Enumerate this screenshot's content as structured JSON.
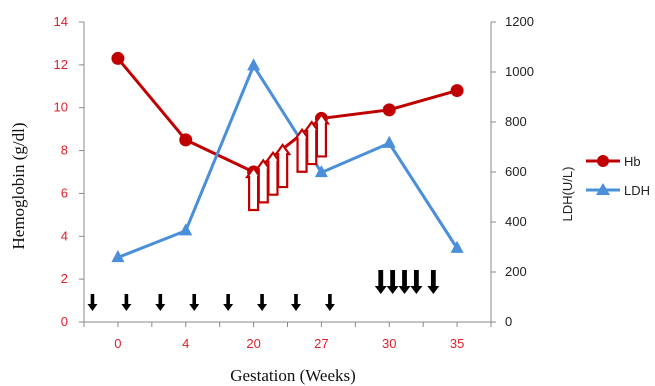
{
  "chart_data": {
    "type": "line",
    "categories": [
      "0",
      "4",
      "20",
      "27",
      "30",
      "35"
    ],
    "xlabel": "Gestation (Weeks)",
    "ylabel": "Hemoglobin (g/dl)",
    "y2label": "LDH(U/L)",
    "ylim": [
      0,
      14
    ],
    "y2lim": [
      0,
      1200
    ],
    "yticks": [
      "0",
      "2",
      "4",
      "6",
      "8",
      "10",
      "12",
      "14"
    ],
    "y2ticks": [
      "0",
      "200",
      "400",
      "600",
      "800",
      "1000",
      "1200"
    ],
    "grid": false,
    "legend_position": "right",
    "series": [
      {
        "name": "Hb",
        "axis": "left",
        "color": "#c00000",
        "marker": "circle",
        "values": [
          12.3,
          8.5,
          7.0,
          9.5,
          9.9,
          10.8
        ]
      },
      {
        "name": "LDH",
        "axis": "right",
        "color": "#4a8fd8",
        "marker": "triangle",
        "values": [
          258,
          365,
          1025,
          598,
          715,
          295
        ]
      }
    ],
    "annotations": {
      "red_up_arrows_x": [
        20,
        21,
        22,
        23,
        25,
        26,
        27
      ],
      "black_down_arrows_x": [
        0.25,
        1.25,
        2.25,
        3.25,
        4.25,
        5.25,
        6.25,
        7.25,
        8.75,
        9.1,
        9.45,
        9.8,
        10.3
      ],
      "black_down_arrow_style": [
        "small",
        "small",
        "small",
        "small",
        "small",
        "small",
        "small",
        "small",
        "large",
        "large",
        "large",
        "large",
        "large"
      ]
    },
    "annotation_colors": {
      "red_arrow": "#c00000",
      "black_arrow": "#000000"
    }
  }
}
